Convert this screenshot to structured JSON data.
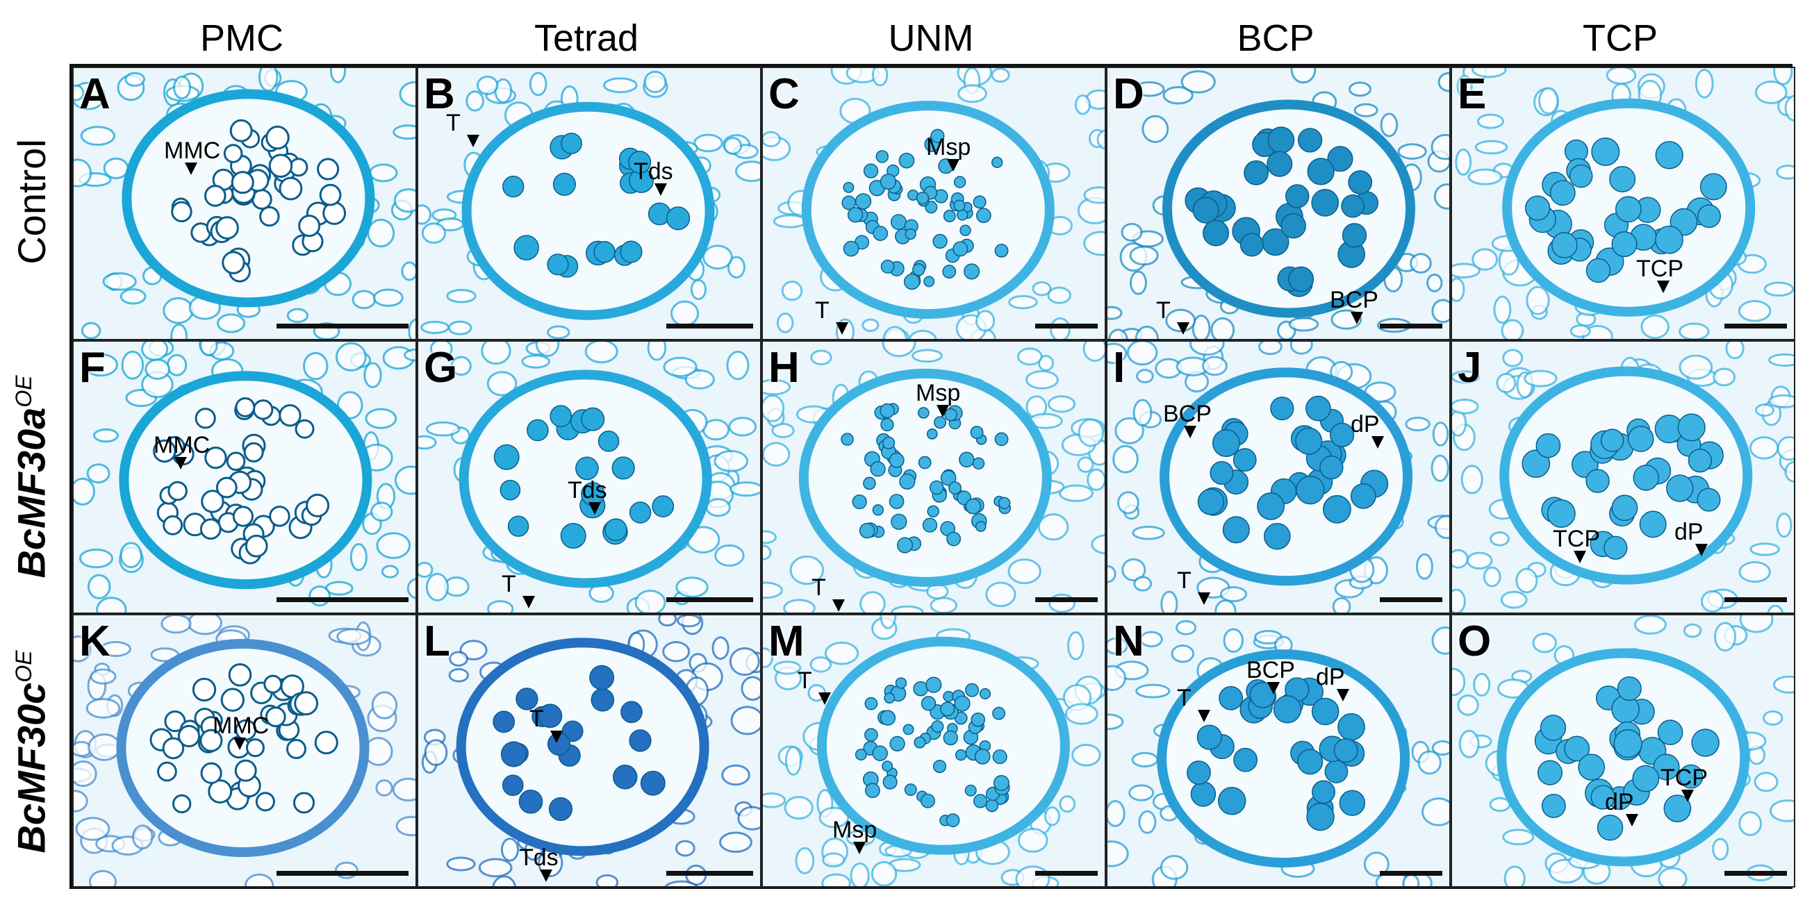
{
  "columns": [
    "PMC",
    "Tetrad",
    "UNM",
    "BCP",
    "TCP"
  ],
  "rows": [
    {
      "name": "Control",
      "italic": false,
      "sup": ""
    },
    {
      "name": "BcMF30a",
      "italic": true,
      "sup": "OE"
    },
    {
      "name": "BcMF30c",
      "italic": true,
      "sup": "OE"
    }
  ],
  "panels": [
    {
      "label": "A",
      "stage": "PMC",
      "tone": "#1aa6d6",
      "annotations": [
        {
          "text": "MMC"
        }
      ]
    },
    {
      "label": "B",
      "stage": "Tetrad",
      "tone": "#28a9dc",
      "annotations": [
        {
          "text": "T"
        },
        {
          "text": "Tds"
        }
      ]
    },
    {
      "label": "C",
      "stage": "UNM",
      "tone": "#3fb4e2",
      "annotations": [
        {
          "text": "Msp"
        },
        {
          "text": "T"
        }
      ]
    },
    {
      "label": "D",
      "stage": "BCP",
      "tone": "#1f8ec4",
      "annotations": [
        {
          "text": "T"
        },
        {
          "text": "BCP"
        }
      ]
    },
    {
      "label": "E",
      "stage": "TCP",
      "tone": "#3db3e3",
      "annotations": [
        {
          "text": "TCP"
        }
      ]
    },
    {
      "label": "F",
      "stage": "PMC",
      "tone": "#1aa6d6",
      "annotations": [
        {
          "text": "MMC"
        }
      ]
    },
    {
      "label": "G",
      "stage": "Tetrad",
      "tone": "#28a9dc",
      "annotations": [
        {
          "text": "Tds"
        },
        {
          "text": "T"
        }
      ]
    },
    {
      "label": "H",
      "stage": "UNM",
      "tone": "#3fb4e2",
      "annotations": [
        {
          "text": "Msp"
        },
        {
          "text": "T"
        }
      ]
    },
    {
      "label": "I",
      "stage": "BCP",
      "tone": "#2a9ed6",
      "annotations": [
        {
          "text": "BCP"
        },
        {
          "text": "dP"
        },
        {
          "text": "T"
        }
      ]
    },
    {
      "label": "J",
      "stage": "TCP",
      "tone": "#3db3e3",
      "annotations": [
        {
          "text": "TCP"
        },
        {
          "text": "dP"
        }
      ]
    },
    {
      "label": "K",
      "stage": "PMC",
      "tone": "#4a8fd0",
      "annotations": [
        {
          "text": "MMC"
        }
      ]
    },
    {
      "label": "L",
      "stage": "Tetrad",
      "tone": "#2570c0",
      "annotations": [
        {
          "text": "T"
        },
        {
          "text": "Tds"
        }
      ]
    },
    {
      "label": "M",
      "stage": "UNM",
      "tone": "#3fb4e2",
      "annotations": [
        {
          "text": "T"
        },
        {
          "text": "Msp"
        }
      ]
    },
    {
      "label": "N",
      "stage": "BCP",
      "tone": "#2a9ed6",
      "annotations": [
        {
          "text": "T"
        },
        {
          "text": "BCP"
        },
        {
          "text": "dP"
        }
      ]
    },
    {
      "label": "O",
      "stage": "TCP",
      "tone": "#3db3e3",
      "annotations": [
        {
          "text": "dP"
        },
        {
          "text": "TCP"
        }
      ]
    }
  ]
}
